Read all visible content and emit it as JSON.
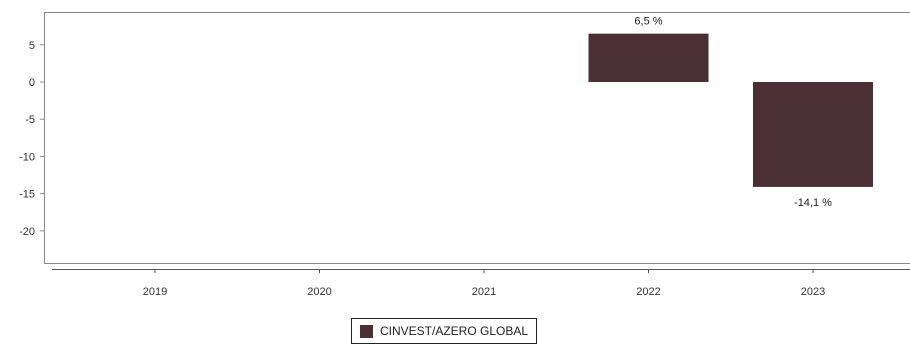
{
  "chart_data": {
    "type": "bar",
    "categories": [
      "2019",
      "2020",
      "2021",
      "2022",
      "2023"
    ],
    "series": [
      {
        "name": "CINVEST/AZERO GLOBAL",
        "values": [
          null,
          null,
          null,
          6.5,
          -14.1
        ],
        "value_labels": [
          "",
          "",
          "",
          "6,5 %",
          "-14,1 %"
        ],
        "color": "#4a2f35"
      }
    ],
    "yticks": [
      5,
      0,
      -5,
      -10,
      -15,
      -20
    ],
    "ylim": [
      -24.5,
      9.5
    ],
    "grid": false,
    "legend_position": "bottom-center",
    "title": "",
    "xlabel": "",
    "ylabel": ""
  },
  "legend": {
    "label": "CINVEST/AZERO GLOBAL",
    "color": "#4a2f35"
  }
}
